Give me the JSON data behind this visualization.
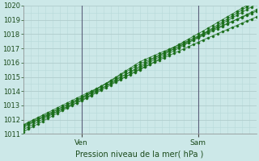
{
  "xlabel": "Pression niveau de la mer( hPa )",
  "ylim": [
    1011,
    1020
  ],
  "yticks": [
    1011,
    1012,
    1013,
    1014,
    1015,
    1016,
    1017,
    1018,
    1019,
    1020
  ],
  "xlim": [
    0,
    96
  ],
  "xtick_positions": [
    24,
    72
  ],
  "xtick_labels": [
    "Ven",
    "Sam"
  ],
  "vline_positions": [
    24,
    72
  ],
  "bg_color": "#cce8e8",
  "plot_bg_color": "#cce8e8",
  "grid_major_color": "#b0cccc",
  "grid_minor_color": "#b8d8d8",
  "line_color": "#1a6e1a",
  "marker_color": "#1a6e1a",
  "vline_color": "#444466",
  "n_points": 97,
  "n_series": 6
}
